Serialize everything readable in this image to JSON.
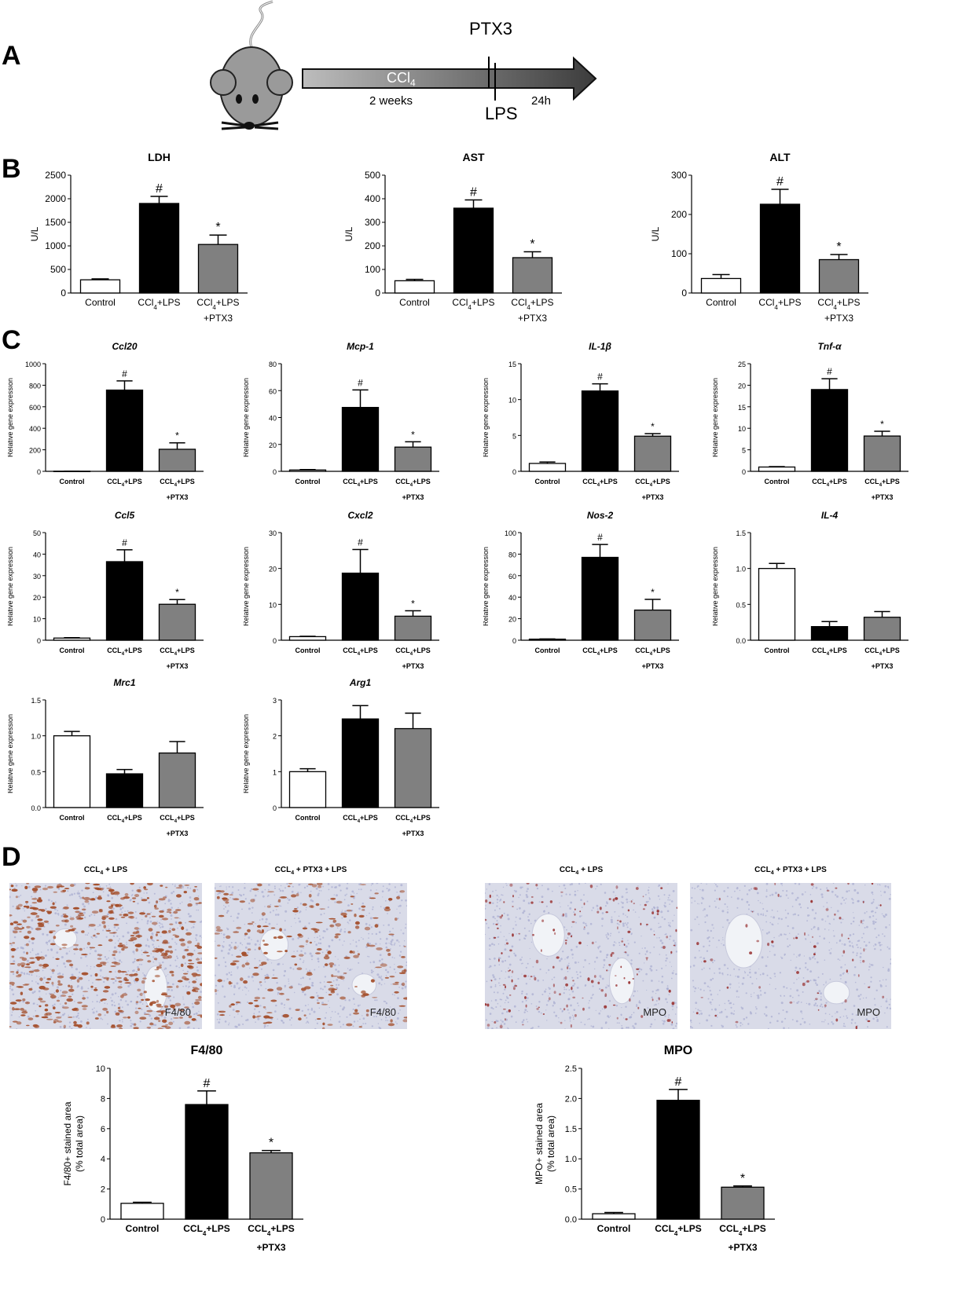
{
  "panels": {
    "a": "A",
    "b": "B",
    "c": "C",
    "d": "D"
  },
  "timeline": {
    "ptx3": "PTX3",
    "ccl4": "CCl",
    "ccl4_sub": "4",
    "two_weeks": "2 weeks",
    "lps": "LPS",
    "h24": "24h"
  },
  "colors": {
    "control": "#ffffff",
    "ccl4_lps": "#000000",
    "ptx3": "#808080"
  },
  "micro": {
    "f480_a_title": "CCL4 + LPS",
    "f480_b_title": "CCL4 + PTX3 + LPS",
    "mpo_a_title": "CCL4 + LPS",
    "mpo_b_title": "CCL4 + PTX3 + LPS",
    "f480_label": "F4/80",
    "mpo_label": "MPO"
  },
  "chart_data": [
    {
      "id": "ldh",
      "type": "bar",
      "title": "LDH",
      "ylabel": "U/L",
      "ylim": [
        0,
        2500
      ],
      "yticks": [
        0,
        500,
        1000,
        1500,
        2000,
        2500
      ],
      "categories": [
        "Control",
        "CCl4+LPS",
        "CCl4+LPS +PTX3"
      ],
      "values": [
        280,
        1900,
        1030
      ],
      "errors": [
        20,
        150,
        200
      ],
      "marks": [
        "",
        "#",
        "*"
      ],
      "style": "B"
    },
    {
      "id": "ast",
      "type": "bar",
      "title": "AST",
      "ylabel": "U/L",
      "ylim": [
        0,
        500
      ],
      "yticks": [
        0,
        100,
        200,
        300,
        400,
        500
      ],
      "categories": [
        "Control",
        "CCl4+LPS",
        "CCl4+LPS +PTX3"
      ],
      "values": [
        52,
        360,
        150
      ],
      "errors": [
        6,
        35,
        25
      ],
      "marks": [
        "",
        "#",
        "*"
      ],
      "style": "B"
    },
    {
      "id": "alt",
      "type": "bar",
      "title": "ALT",
      "ylabel": "U/L",
      "ylim": [
        0,
        300
      ],
      "yticks": [
        0,
        100,
        200,
        300
      ],
      "categories": [
        "Control",
        "CCl4+LPS",
        "CCl4+LPS +PTX3"
      ],
      "values": [
        37,
        226,
        85
      ],
      "errors": [
        10,
        38,
        13
      ],
      "marks": [
        "",
        "#",
        "*"
      ],
      "style": "B"
    },
    {
      "id": "ccl20",
      "type": "bar",
      "title": "Ccl20",
      "ylabel": "Relative gene expression",
      "ylim": [
        0,
        1000
      ],
      "yticks": [
        0,
        200,
        400,
        600,
        800,
        1000
      ],
      "categories": [
        "Control",
        "CCL4+LPS",
        "CCL4+LPS +PTX3"
      ],
      "values": [
        1,
        755,
        205
      ],
      "errors": [
        0,
        85,
        60
      ],
      "marks": [
        "",
        "#",
        "*"
      ],
      "style": "C"
    },
    {
      "id": "mcp1",
      "type": "bar",
      "title": "Mcp-1",
      "ylabel": "Relative gene expression",
      "ylim": [
        0,
        80
      ],
      "yticks": [
        0,
        20,
        40,
        60,
        80
      ],
      "categories": [
        "Control",
        "CCL4+LPS",
        "CCL4+LPS +PTX3"
      ],
      "values": [
        1,
        47.5,
        18
      ],
      "errors": [
        0.3,
        13,
        4
      ],
      "marks": [
        "",
        "#",
        "*"
      ],
      "style": "C"
    },
    {
      "id": "il1b",
      "type": "bar",
      "title": "IL-1β",
      "ylabel": "Relative gene expression",
      "ylim": [
        0,
        15
      ],
      "yticks": [
        0,
        5,
        10,
        15
      ],
      "categories": [
        "Control",
        "CCL4+LPS",
        "CCL4+LPS +PTX3"
      ],
      "values": [
        1.1,
        11.2,
        4.9
      ],
      "errors": [
        0.2,
        1,
        0.35
      ],
      "marks": [
        "",
        "#",
        "*"
      ],
      "style": "C"
    },
    {
      "id": "tnfa",
      "type": "bar",
      "title": "Tnf-α",
      "ylabel": "Relative gene expression",
      "ylim": [
        0,
        25
      ],
      "yticks": [
        0,
        5,
        10,
        15,
        20,
        25
      ],
      "categories": [
        "Control",
        "CCL4+LPS",
        "CCL4+LPS +PTX3"
      ],
      "values": [
        1,
        19,
        8.2
      ],
      "errors": [
        0.1,
        2.5,
        1.1
      ],
      "marks": [
        "",
        "#",
        "*"
      ],
      "style": "C"
    },
    {
      "id": "ccl5",
      "type": "bar",
      "title": "Ccl5",
      "ylabel": "Relative gene expression",
      "ylim": [
        0,
        50
      ],
      "yticks": [
        0,
        10,
        20,
        30,
        40,
        50
      ],
      "categories": [
        "Control",
        "CCL4+LPS",
        "CCL4+LPS +PTX3"
      ],
      "values": [
        1,
        36.5,
        16.7
      ],
      "errors": [
        0.2,
        5.5,
        2.2
      ],
      "marks": [
        "",
        "#",
        "*"
      ],
      "style": "C"
    },
    {
      "id": "cxcl2",
      "type": "bar",
      "title": "Cxcl2",
      "ylabel": "Relative gene expression",
      "ylim": [
        0,
        30
      ],
      "yticks": [
        0,
        10,
        20,
        30
      ],
      "categories": [
        "Control",
        "CCL4+LPS",
        "CCL4+LPS +PTX3"
      ],
      "values": [
        1,
        18.7,
        6.7
      ],
      "errors": [
        0.1,
        6.6,
        1.5
      ],
      "marks": [
        "",
        "#",
        "*"
      ],
      "style": "C"
    },
    {
      "id": "nos2",
      "type": "bar",
      "title": "Nos-2",
      "ylabel": "Relative gene expression",
      "ylim": [
        0,
        100
      ],
      "yticks": [
        0,
        20,
        40,
        60,
        80,
        100
      ],
      "categories": [
        "Control",
        "CCL4+LPS",
        "CCL4+LPS +PTX3"
      ],
      "values": [
        1,
        77,
        28
      ],
      "errors": [
        0.2,
        12,
        10
      ],
      "marks": [
        "",
        "#",
        "*"
      ],
      "style": "C"
    },
    {
      "id": "il4",
      "type": "bar",
      "title": "IL-4",
      "ylabel": "Relative gene expression",
      "ylim": [
        0,
        1.5
      ],
      "yticks": [
        0.0,
        0.5,
        1.0,
        1.5
      ],
      "categories": [
        "Control",
        "CCL4+LPS",
        "CCL4+LPS +PTX3"
      ],
      "values": [
        1.0,
        0.19,
        0.32
      ],
      "errors": [
        0.07,
        0.07,
        0.08
      ],
      "marks": [
        "",
        "",
        ""
      ],
      "style": "C"
    },
    {
      "id": "mrc1",
      "type": "bar",
      "title": "Mrc1",
      "ylabel": "Relative gene expression",
      "ylim": [
        0,
        1.5
      ],
      "yticks": [
        0.0,
        0.5,
        1.0,
        1.5
      ],
      "categories": [
        "Control",
        "CCL4+LPS",
        "CCL4+LPS +PTX3"
      ],
      "values": [
        1.0,
        0.47,
        0.76
      ],
      "errors": [
        0.06,
        0.06,
        0.16
      ],
      "marks": [
        "",
        "",
        ""
      ],
      "style": "C"
    },
    {
      "id": "arg1",
      "type": "bar",
      "title": "Arg1",
      "ylabel": "Relative gene expression",
      "ylim": [
        0,
        3
      ],
      "yticks": [
        0,
        1,
        2,
        3
      ],
      "categories": [
        "Control",
        "CCL4+LPS",
        "CCL4+LPS +PTX3"
      ],
      "values": [
        1.0,
        2.47,
        2.2
      ],
      "errors": [
        0.08,
        0.37,
        0.43
      ],
      "marks": [
        "",
        "",
        ""
      ],
      "style": "C"
    },
    {
      "id": "f480",
      "type": "bar",
      "title": "F4/80",
      "ylabel": "F4/80+ stained area (% total area)",
      "ylim": [
        0,
        10
      ],
      "yticks": [
        0,
        2,
        4,
        6,
        8,
        10
      ],
      "categories": [
        "Control",
        "CCL4+LPS",
        "CCL4+LPS +PTX3"
      ],
      "values": [
        1.05,
        7.6,
        4.4
      ],
      "errors": [
        0.07,
        0.9,
        0.15
      ],
      "marks": [
        "",
        "#",
        "*"
      ],
      "style": "D"
    },
    {
      "id": "mpo",
      "type": "bar",
      "title": "MPO",
      "ylabel": "MPO+ stained area (% total area)",
      "ylim": [
        0,
        2.5
      ],
      "yticks": [
        0.0,
        0.5,
        1.0,
        1.5,
        2.0,
        2.5
      ],
      "categories": [
        "Control",
        "CCL4+LPS",
        "CCL4+LPS +PTX3"
      ],
      "values": [
        0.09,
        1.97,
        0.53
      ],
      "errors": [
        0.02,
        0.18,
        0.02
      ],
      "marks": [
        "",
        "#",
        "*"
      ],
      "style": "D"
    }
  ]
}
